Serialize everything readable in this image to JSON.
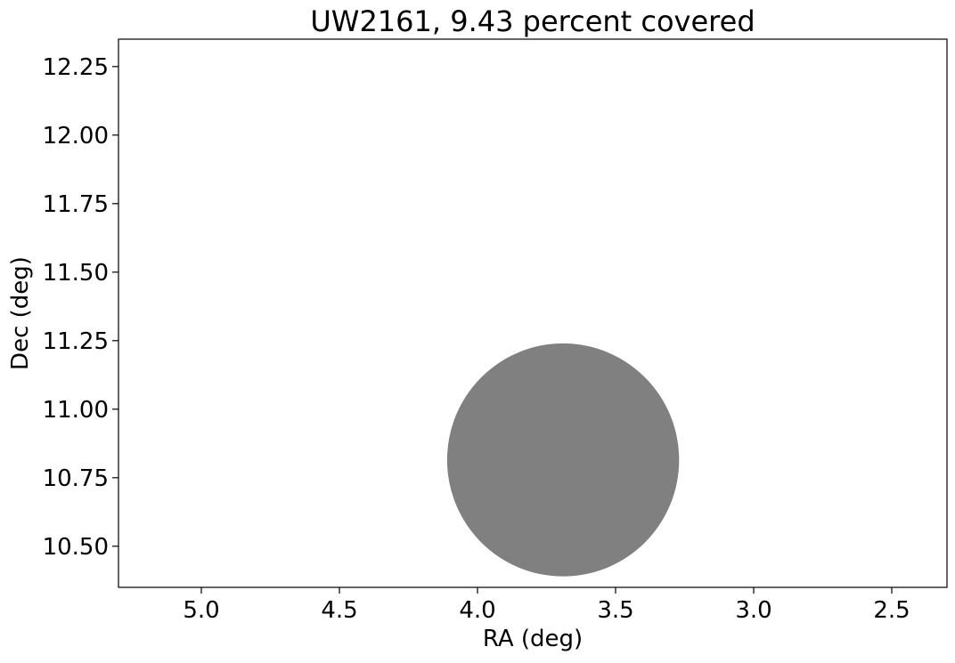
{
  "chart_data": {
    "type": "scatter",
    "title": "UW2161, 9.43 percent covered",
    "xlabel": "RA (deg)",
    "ylabel": "Dec (deg)",
    "xlim": [
      5.3,
      2.3
    ],
    "ylim": [
      10.35,
      12.35
    ],
    "x_inverted": true,
    "xticks": [
      5.0,
      4.5,
      4.0,
      3.5,
      3.0,
      2.5
    ],
    "xtick_labels": [
      "5.0",
      "4.5",
      "4.0",
      "3.5",
      "3.0",
      "2.5"
    ],
    "yticks": [
      10.5,
      10.75,
      11.0,
      11.25,
      11.5,
      11.75,
      12.0,
      12.25
    ],
    "ytick_labels": [
      "10.50",
      "10.75",
      "11.00",
      "11.25",
      "11.50",
      "11.75",
      "12.00",
      "12.25"
    ],
    "grid": false,
    "shapes": [
      {
        "kind": "circle",
        "center_ra": 3.69,
        "center_dec": 10.815,
        "rx_ra": 0.42,
        "ry_dec": 0.425,
        "color": "#808080"
      }
    ]
  }
}
